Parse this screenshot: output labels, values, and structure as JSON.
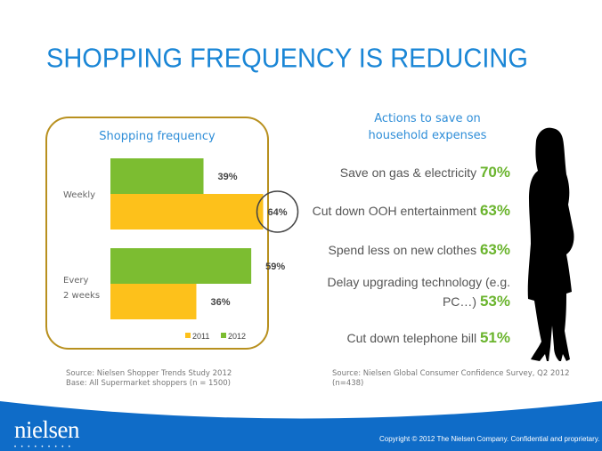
{
  "slide": {
    "title": "SHOPPING FREQUENCY IS REDUCING"
  },
  "chart_data": {
    "type": "bar",
    "orientation": "horizontal",
    "title": "Shopping frequency",
    "categories": [
      "Weekly",
      "Every 2 weeks"
    ],
    "category_lines": [
      [
        "Weekly"
      ],
      [
        "Every",
        "2 weeks"
      ]
    ],
    "series": [
      {
        "name": "2012",
        "color": "#7cbd31",
        "values": [
          39,
          59
        ],
        "labels": [
          "39%",
          "59%"
        ]
      },
      {
        "name": "2011",
        "color": "#fdc11b",
        "values": [
          64,
          36
        ],
        "labels": [
          "64%",
          "36%"
        ]
      }
    ],
    "legend": {
      "position": "bottom",
      "entries": [
        "2011",
        "2012"
      ]
    },
    "highlight": {
      "category": "Weekly",
      "series": "2011",
      "label": "64%",
      "style": "circle"
    },
    "xlim": [
      0,
      70
    ],
    "grid": false,
    "xlabel": "",
    "ylabel": ""
  },
  "actions": {
    "heading_line1": "Actions to save on",
    "heading_line2": "household expenses",
    "items": [
      {
        "label": "Save on gas & electricity",
        "value": "70%"
      },
      {
        "label": "Cut down OOH entertainment",
        "value": "63%"
      },
      {
        "label": "Spend less on new clothes",
        "value": "63%"
      },
      {
        "label_line1": "Delay upgrading technology (e.g.",
        "label_line2": "PC…)",
        "value": "53%"
      },
      {
        "label": "Cut down telephone bill",
        "value": "51%"
      }
    ]
  },
  "sources": {
    "left_line1": "Source: Nielsen Shopper Trends Study 2012",
    "left_line2": "Base: All Supermarket shoppers (n = 1500)",
    "right_line1": "Source: Nielsen Global Consumer Confidence Survey, Q2 2012",
    "right_line2": "(n=438)"
  },
  "footer": {
    "logo": "nielsen",
    "logo_dots": "•••••••••",
    "copyright": "Copyright © 2012 The Nielsen Company. Confidential and proprietary.",
    "bar_color": "#0f6cc8"
  },
  "image": {
    "silhouette": "woman-silhouette"
  }
}
